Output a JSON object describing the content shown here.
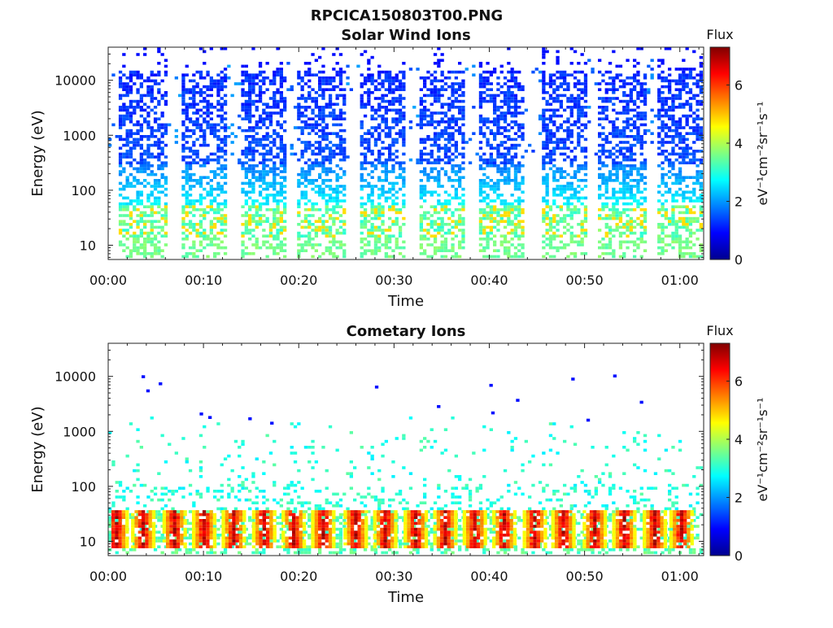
{
  "figure_title": "RPCICA150803T00.PNG",
  "colorbar": {
    "title": "Flux",
    "unit_label": "eV⁻¹cm⁻²sr⁻¹s⁻¹",
    "range": [
      0,
      7.3
    ],
    "ticks": [
      "0",
      "2",
      "4",
      "6"
    ],
    "colormap": [
      "#00008f",
      "#0000ff",
      "#0080ff",
      "#00ffff",
      "#80ff80",
      "#ffff00",
      "#ff8000",
      "#ff0000",
      "#800000"
    ]
  },
  "chart_data": [
    {
      "type": "heatmap",
      "title": "Solar Wind Ions",
      "xlabel": "Time",
      "ylabel": "Energy (eV)",
      "x_scale": "time",
      "x_range_minutes": [
        0,
        62.5
      ],
      "x_tick_labels": [
        "00:00",
        "00:10",
        "00:20",
        "00:30",
        "00:40",
        "00:50",
        "01:00"
      ],
      "y_scale": "log",
      "y_range": [
        5.5,
        40000
      ],
      "y_tick_labels": [
        "10",
        "100",
        "1000",
        "10000"
      ],
      "z_label": "Flux",
      "z_range": [
        0,
        7.3
      ],
      "pattern": "periodic sweeps",
      "sweep_centers_minutes": [
        3.5,
        9.8,
        16.0,
        22.2,
        28.7,
        34.9,
        41.2,
        47.6,
        53.8,
        60.0
      ],
      "sweep_halfwidth_minutes": 2.4,
      "dense_energy_band_eV": [
        40,
        20000
      ],
      "core_flux_level": 1.2,
      "low_energy_peak": {
        "energy_eV": [
          15,
          60
        ],
        "flux_level": 4.8
      }
    },
    {
      "type": "heatmap",
      "title": "Cometary Ions",
      "xlabel": "Time",
      "ylabel": "Energy (eV)",
      "x_scale": "time",
      "x_range_minutes": [
        0,
        62.5
      ],
      "x_tick_labels": [
        "00:00",
        "00:10",
        "00:20",
        "00:30",
        "00:40",
        "00:50",
        "01:00"
      ],
      "y_scale": "log",
      "y_range": [
        5.5,
        40000
      ],
      "y_tick_labels": [
        "10",
        "100",
        "1000",
        "10000"
      ],
      "z_label": "Flux",
      "z_range": [
        0,
        7.3
      ],
      "pattern": "periodic bursts",
      "burst_centers_minutes": [
        0.7,
        3.5,
        6.8,
        9.9,
        13.0,
        16.2,
        19.3,
        22.4,
        25.8,
        28.9,
        32.1,
        35.2,
        38.3,
        41.4,
        44.6,
        47.6,
        50.9,
        54.0,
        57.2,
        60.0
      ],
      "burst_energy_eV": [
        8,
        40
      ],
      "burst_peak_flux": 7.2,
      "scattered_points_energy_eV": [
        40,
        2000
      ],
      "scattered_flux_level": 3.0,
      "sparse_high_energy_points": [
        {
          "minute": 3.5,
          "energy_eV": 10500
        },
        {
          "minute": 4.0,
          "energy_eV": 5800
        },
        {
          "minute": 5.3,
          "energy_eV": 7800
        },
        {
          "minute": 9.6,
          "energy_eV": 2200
        },
        {
          "minute": 10.5,
          "energy_eV": 1900
        },
        {
          "minute": 14.7,
          "energy_eV": 1800
        },
        {
          "minute": 17.0,
          "energy_eV": 1500
        },
        {
          "minute": 28.0,
          "energy_eV": 6800
        },
        {
          "minute": 34.5,
          "energy_eV": 3000
        },
        {
          "minute": 40.0,
          "energy_eV": 7300
        },
        {
          "minute": 40.2,
          "energy_eV": 2300
        },
        {
          "minute": 42.8,
          "energy_eV": 3900
        },
        {
          "minute": 48.6,
          "energy_eV": 9500
        },
        {
          "minute": 50.2,
          "energy_eV": 1700
        },
        {
          "minute": 53.0,
          "energy_eV": 10800
        },
        {
          "minute": 55.8,
          "energy_eV": 3600
        }
      ]
    }
  ]
}
